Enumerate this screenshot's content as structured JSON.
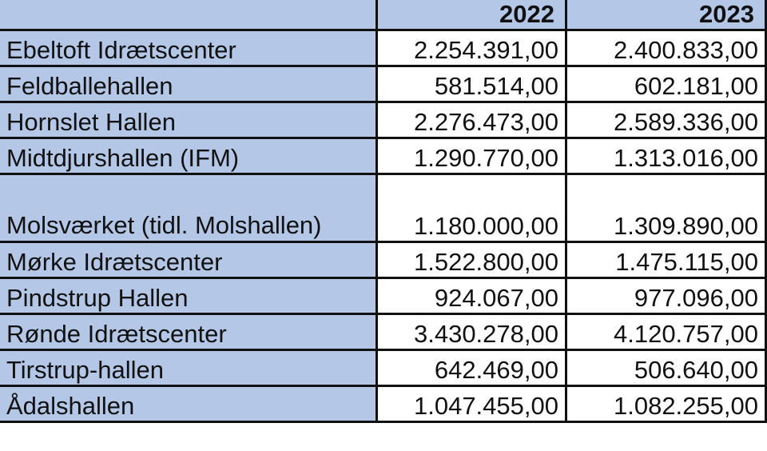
{
  "table": {
    "header": {
      "name": "",
      "years": [
        "2022",
        "2023"
      ]
    },
    "rows": [
      {
        "name": "Ebeltoft Idrætscenter",
        "values": [
          "2.254.391,00",
          "2.400.833,00"
        ]
      },
      {
        "name": "Feldballehallen",
        "values": [
          "581.514,00",
          "602.181,00"
        ]
      },
      {
        "name": "Hornslet Hallen",
        "values": [
          "2.276.473,00",
          "2.589.336,00"
        ]
      },
      {
        "name": "Midtdjurshallen (IFM)",
        "values": [
          "1.290.770,00",
          "1.313.016,00"
        ]
      },
      {
        "name": "Molsværket (tidl. Molshallen)",
        "values": [
          "1.180.000,00",
          "1.309.890,00"
        ]
      },
      {
        "name": "Mørke Idrætscenter",
        "values": [
          "1.522.800,00",
          "1.475.115,00"
        ]
      },
      {
        "name": "Pindstrup Hallen",
        "values": [
          "924.067,00",
          "977.096,00"
        ]
      },
      {
        "name": "Rønde Idrætscenter",
        "values": [
          "3.430.278,00",
          "4.120.757,00"
        ]
      },
      {
        "name": "Tirstrup-hallen",
        "values": [
          "642.469,00",
          "506.640,00"
        ]
      },
      {
        "name": "Ådalshallen",
        "values": [
          "1.047.455,00",
          "1.082.255,00"
        ]
      }
    ]
  },
  "colors": {
    "header_background": "#b4c7e7",
    "name_column_background": "#b4c7e7",
    "value_background": "#ffffff",
    "border": "#111111"
  }
}
